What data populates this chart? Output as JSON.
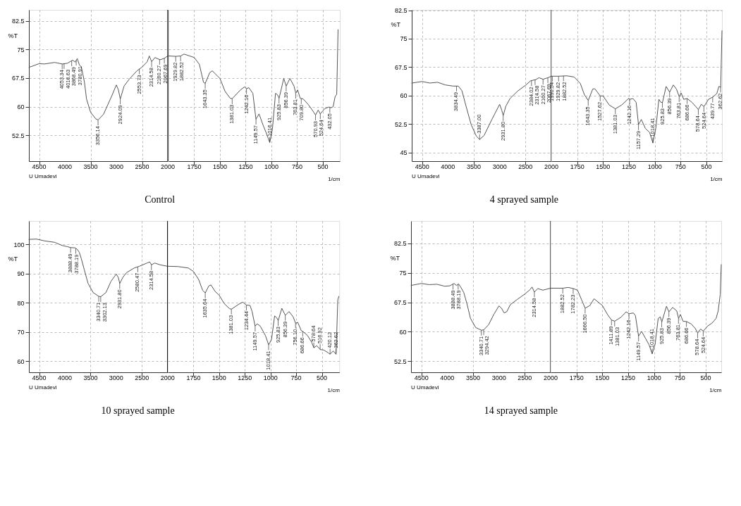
{
  "chart_data": [
    {
      "type": "line",
      "title": "Control",
      "ylabel": "%T",
      "xlim": [
        4700,
        2000
      ],
      "ylim": [
        45.7,
        85.4
      ],
      "xticks": [
        4500,
        4000,
        3500,
        3000,
        2500,
        2000
      ],
      "yticks": [
        52.5,
        60,
        67.5,
        75,
        82.5
      ],
      "grid": true,
      "ref_lines": [
        {
          "axis": "x",
          "value": 2000,
          "color": "#000000"
        }
      ],
      "series": [
        {
          "color": "#555555",
          "x": [
            4700,
            4500,
            4400,
            4200,
            4050,
            3950,
            3850,
            3800,
            3760,
            3720,
            3680,
            3620,
            3580,
            3500,
            3400,
            3356,
            3250,
            3100,
            3000,
            2960,
            2924,
            2850,
            2750,
            2600,
            2500,
            2400,
            2360,
            2314,
            2250,
            2150,
            2067,
            2000
          ],
          "values": [
            70.3,
            71.3,
            71.2,
            71.6,
            71.2,
            71.4,
            72.2,
            71.7,
            72.6,
            71.0,
            70.4,
            66.4,
            62.0,
            58.5,
            56.8,
            56.5,
            58.0,
            62.5,
            65.7,
            64.4,
            62.0,
            65.4,
            67.2,
            69.4,
            70.4,
            71.8,
            73.3,
            71.8,
            72.9,
            72.3,
            72.7,
            73.3
          ]
        }
      ],
      "annotations": [
        "U Umadevi",
        {
          "text": "4053.34",
          "x": 4053.34,
          "y": 71.2
        },
        {
          "text": "4016.63",
          "x": 4016.63,
          "y": 71.3
        },
        {
          "text": "3868.49",
          "x": 3868.49,
          "y": 72.0
        },
        {
          "text": "3780.91",
          "x": 3780.91,
          "y": 72.2
        },
        {
          "text": "3356.14",
          "x": 3356.14,
          "y": 56.5
        },
        {
          "text": "2924.09",
          "x": 2924.09,
          "y": 62.0
        },
        {
          "text": "2553.73",
          "x": 2553.73,
          "y": 69.9
        },
        {
          "text": "2314.58",
          "x": 2314.58,
          "y": 71.8
        },
        {
          "text": "2160.27",
          "x": 2160.27,
          "y": 72.4
        },
        {
          "text": "2067.69",
          "x": 2067.69,
          "y": 72.7
        }
      ]
    },
    {
      "type": "line",
      "xlabel": "1/cm",
      "xlim": [
        2000,
        335
      ],
      "ylim": [
        45.7,
        85.4
      ],
      "xticks": [
        1750,
        1500,
        1250,
        1000,
        750,
        500
      ],
      "yticks": [
        52.5,
        60,
        67.5,
        75,
        82.5
      ],
      "grid": true,
      "tick_labels": "x",
      "series": [
        {
          "color": "#555555",
          "x": [
            2000,
            1930,
            1880,
            1850,
            1750,
            1700,
            1660,
            1643,
            1600,
            1575,
            1500,
            1450,
            1400,
            1381,
            1300,
            1260,
            1242,
            1220,
            1180,
            1150,
            1120,
            1080,
            1050,
            1016,
            990,
            960,
            940,
            925,
            880,
            856,
            820,
            780,
            763,
            745,
            720,
            690,
            640,
            600,
            571,
            545,
            525,
            480,
            440,
            420,
            400,
            380,
            365,
            352
          ],
          "values": [
            73.3,
            73.2,
            73.3,
            73.8,
            72.9,
            71.1,
            66.4,
            66.1,
            68.9,
            69.4,
            67.4,
            64.0,
            62.2,
            62.1,
            64.4,
            65.2,
            64.7,
            65.0,
            63.5,
            56.7,
            58.1,
            55.1,
            53.1,
            50.6,
            54.1,
            63.5,
            63.1,
            62.2,
            67.4,
            65.4,
            67.4,
            65.4,
            63.5,
            64.4,
            62.2,
            62.0,
            60.5,
            59.0,
            57.8,
            59.1,
            58.1,
            59.5,
            59.9,
            59.7,
            60.0,
            62.7,
            63.2,
            80.2
          ]
        }
      ],
      "annotations": [
        {
          "text": "1929.82",
          "x": 1929.82,
          "y": 73.2
        },
        {
          "text": "1882.52",
          "x": 1882.52,
          "y": 73.3
        },
        {
          "text": "1643.35",
          "x": 1643.35,
          "y": 66.1
        },
        {
          "text": "1381.03",
          "x": 1381.03,
          "y": 62.1
        },
        {
          "text": "1242.16",
          "x": 1242.16,
          "y": 64.7
        },
        {
          "text": "1149.57",
          "x": 1149.57,
          "y": 56.7
        },
        {
          "text": "1016.41",
          "x": 1016.41,
          "y": 50.6
        },
        {
          "text": "925.83",
          "x": 925.83,
          "y": 62.2
        },
        {
          "text": "856.39",
          "x": 856.39,
          "y": 65.4
        },
        {
          "text": "763.81",
          "x": 763.81,
          "y": 63.5
        },
        {
          "text": "709.80",
          "x": 709.8,
          "y": 62.1
        },
        {
          "text": "570.93",
          "x": 570.93,
          "y": 57.8
        },
        {
          "text": "524.64",
          "x": 524.64,
          "y": 58.1
        },
        {
          "text": "432.05",
          "x": 432.05,
          "y": 59.8
        }
      ]
    },
    {
      "type": "line",
      "title": "4 sprayed sample",
      "ylabel": "%T",
      "xlim": [
        4700,
        2000
      ],
      "ylim": [
        42.7,
        82.6
      ],
      "xticks": [
        4500,
        4000,
        3500,
        3000,
        2500,
        2000
      ],
      "yticks": [
        45,
        52.5,
        60,
        67.5,
        75,
        82.5
      ],
      "grid": true,
      "ref_lines": [
        {
          "axis": "x",
          "value": 2000,
          "color": "#000000"
        }
      ],
      "series": [
        {
          "color": "#555555",
          "x": [
            4700,
            4500,
            4350,
            4200,
            4050,
            3900,
            3800,
            3730,
            3650,
            3550,
            3450,
            3387,
            3300,
            3150,
            3000,
            2960,
            2931,
            2880,
            2800,
            2650,
            2500,
            2400,
            2300,
            2240,
            2160,
            2067,
            2000
          ],
          "values": [
            63.3,
            63.7,
            63.3,
            63.5,
            62.8,
            62.5,
            62.5,
            61.3,
            57.2,
            52.3,
            49.3,
            48.4,
            49.5,
            53.7,
            57.7,
            56.2,
            54.7,
            57.2,
            59.2,
            61.2,
            62.7,
            63.9,
            64.2,
            64.7,
            64.3,
            64.7,
            65.1
          ]
        }
      ],
      "annotations": [
        "U Umadevi",
        {
          "text": "3834.49",
          "x": 3834.49,
          "y": 62.5
        },
        {
          "text": "3387.00",
          "x": 3387.0,
          "y": 48.4
        },
        {
          "text": "2931.80",
          "x": 2931.8,
          "y": 54.7
        },
        {
          "text": "2384.02",
          "x": 2384.02,
          "y": 63.9
        },
        {
          "text": "2314.58",
          "x": 2314.58,
          "y": 64.2
        },
        {
          "text": "2160.27",
          "x": 2160.27,
          "y": 64.3
        },
        {
          "text": "2067.69",
          "x": 2067.69,
          "y": 64.7
        }
      ]
    },
    {
      "type": "line",
      "xlabel": "1/cm",
      "xlim": [
        2000,
        350
      ],
      "ylim": [
        42.7,
        82.6
      ],
      "xticks": [
        1750,
        1500,
        1250,
        1000,
        750,
        500
      ],
      "yticks": [
        45,
        52.5,
        60,
        67.5,
        75,
        82.5
      ],
      "grid": true,
      "tick_labels": "x",
      "series": [
        {
          "color": "#555555",
          "x": [
            2000,
            1929,
            1850,
            1780,
            1720,
            1680,
            1643,
            1600,
            1580,
            1527,
            1500,
            1440,
            1381,
            1320,
            1250,
            1242,
            1210,
            1180,
            1157,
            1130,
            1090,
            1050,
            1018,
            990,
            960,
            940,
            925,
            890,
            856,
            820,
            790,
            763,
            745,
            720,
            686,
            640,
            600,
            578,
            550,
            524,
            480,
            440,
            400,
            380,
            362,
            350
          ],
          "values": [
            65.1,
            65.1,
            65.2,
            64.9,
            63.2,
            60.2,
            58.7,
            61.7,
            61.8,
            59.9,
            59.9,
            57.5,
            56.5,
            57.5,
            59.3,
            59.0,
            59.2,
            58.2,
            52.3,
            53.7,
            51.3,
            50.3,
            47.5,
            51.3,
            59.0,
            58.2,
            58.2,
            62.4,
            60.9,
            62.8,
            61.7,
            59.7,
            60.7,
            59.0,
            59.2,
            58.2,
            57.0,
            56.3,
            57.7,
            57.1,
            59.0,
            59.6,
            60.5,
            62.4,
            62.2,
            77.1
          ]
        }
      ],
      "annotations": [
        {
          "text": "1990.54",
          "x": 1990.54,
          "y": 65.1
        },
        {
          "text": "1929.82",
          "x": 1929.82,
          "y": 65.1
        },
        {
          "text": "1882.52",
          "x": 1882.52,
          "y": 65.2
        },
        {
          "text": "1643.35",
          "x": 1643.35,
          "y": 58.7
        },
        {
          "text": "1527.62",
          "x": 1527.62,
          "y": 59.9
        },
        {
          "text": "1381.03",
          "x": 1381.03,
          "y": 56.5
        },
        {
          "text": "1242.16",
          "x": 1242.16,
          "y": 59.0
        },
        {
          "text": "1157.29",
          "x": 1157.29,
          "y": 52.3
        },
        {
          "text": "1018.41",
          "x": 1018.41,
          "y": 47.5
        },
        {
          "text": "925.83",
          "x": 925.83,
          "y": 58.2
        },
        {
          "text": "856.39",
          "x": 856.39,
          "y": 60.9
        },
        {
          "text": "763.81",
          "x": 763.81,
          "y": 59.7
        },
        {
          "text": "686.66",
          "x": 686.66,
          "y": 59.2
        },
        {
          "text": "578.64",
          "x": 578.64,
          "y": 56.3
        },
        {
          "text": "524.64",
          "x": 524.64,
          "y": 57.1
        },
        {
          "text": "439.77",
          "x": 439.77,
          "y": 59.6
        },
        {
          "text": "362.62",
          "x": 362.62,
          "y": 62.2
        }
      ]
    },
    {
      "type": "line",
      "title": "10 sprayed sample",
      "ylabel": "%T",
      "xlim": [
        4700,
        2000
      ],
      "ylim": [
        56.2,
        108
      ],
      "xticks": [
        4500,
        4000,
        3500,
        3000,
        2500,
        2000
      ],
      "yticks": [
        60,
        70,
        80,
        90,
        100
      ],
      "grid": true,
      "ref_lines": [
        {
          "axis": "x",
          "value": 2000,
          "color": "#000000"
        }
      ],
      "series": [
        {
          "color": "#555555",
          "x": [
            4700,
            4550,
            4400,
            4200,
            4050,
            3950,
            3888,
            3800,
            3760,
            3720,
            3680,
            3620,
            3550,
            3450,
            3340,
            3300,
            3200,
            3100,
            3000,
            2960,
            2931,
            2870,
            2800,
            2650,
            2550,
            2400,
            2350,
            2314,
            2250,
            2150,
            2000
          ],
          "values": [
            101.7,
            101.8,
            101.2,
            100.7,
            99.6,
            99.2,
            98.9,
            98.8,
            98.3,
            97.3,
            95.1,
            91.2,
            86.7,
            83.5,
            82.2,
            82.1,
            83.5,
            87.4,
            89.8,
            88.7,
            86.6,
            88.7,
            90.3,
            91.9,
            92.5,
            93.6,
            94.0,
            93.0,
            93.6,
            93.0,
            92.5
          ]
        }
      ],
      "annotations": [
        "U Umadevi",
        {
          "text": "3888.49",
          "x": 3888.49,
          "y": 98.9
        },
        {
          "text": "3788.19",
          "x": 3788.19,
          "y": 98.6
        },
        {
          "text": "3340.71",
          "x": 3340.71,
          "y": 82.2
        },
        {
          "text": "3302.13",
          "x": 3302.13,
          "y": 82.1
        },
        {
          "text": "2931.80",
          "x": 2931.8,
          "y": 86.6
        },
        {
          "text": "2580.47",
          "x": 2580.47,
          "y": 92.3
        },
        {
          "text": "2314.58",
          "x": 2314.58,
          "y": 93.0
        }
      ]
    },
    {
      "type": "line",
      "xlabel": "1/cm",
      "xlim": [
        2000,
        330
      ],
      "ylim": [
        56.2,
        108
      ],
      "xticks": [
        1750,
        1500,
        1250,
        1000,
        750,
        500
      ],
      "yticks": [
        60,
        70,
        80,
        90,
        100
      ],
      "grid": true,
      "tick_labels": "x",
      "series": [
        {
          "color": "#555555",
          "x": [
            2000,
            1900,
            1800,
            1750,
            1700,
            1660,
            1635,
            1600,
            1580,
            1540,
            1500,
            1450,
            1400,
            1381,
            1300,
            1270,
            1234,
            1200,
            1180,
            1150,
            1130,
            1100,
            1050,
            1018,
            990,
            960,
            940,
            925,
            890,
            856,
            820,
            780,
            756,
            735,
            700,
            686,
            640,
            600,
            578,
            550,
            516,
            480,
            440,
            420,
            390,
            362,
            345,
            335
          ],
          "values": [
            92.5,
            92.4,
            91.9,
            90.7,
            88.0,
            84.2,
            83.4,
            85.8,
            86.1,
            83.9,
            82.6,
            79.7,
            78.0,
            77.8,
            79.7,
            80.2,
            79.2,
            79.1,
            77.1,
            72.0,
            72.8,
            72.0,
            68.8,
            65.6,
            67.5,
            75.5,
            74.9,
            73.9,
            78.1,
            75.7,
            77.0,
            75.2,
            73.0,
            73.3,
            70.4,
            70.2,
            68.8,
            66.5,
            64.6,
            65.3,
            64.0,
            63.8,
            62.9,
            62.4,
            63.5,
            62.4,
            81.0,
            82.2
          ]
        }
      ],
      "annotations": [
        {
          "text": "1635.64",
          "x": 1635.64,
          "y": 83.4
        },
        {
          "text": "1381.03",
          "x": 1381.03,
          "y": 77.8
        },
        {
          "text": "1234.44",
          "x": 1234.44,
          "y": 79.2
        },
        {
          "text": "1149.57",
          "x": 1149.57,
          "y": 72.0
        },
        {
          "text": "1018.41",
          "x": 1018.41,
          "y": 65.6
        },
        {
          "text": "925.83",
          "x": 925.83,
          "y": 73.9
        },
        {
          "text": "856.39",
          "x": 856.39,
          "y": 75.7
        },
        {
          "text": "756.10",
          "x": 756.1,
          "y": 73.0
        },
        {
          "text": "686.66",
          "x": 686.66,
          "y": 70.2
        },
        {
          "text": "578.64",
          "x": 578.64,
          "y": 64.6
        },
        {
          "text": "516.92",
          "x": 516.92,
          "y": 64.0
        },
        {
          "text": "420.12",
          "x": 420.12,
          "y": 62.4
        },
        {
          "text": "362.62",
          "x": 362.62,
          "y": 62.4
        }
      ]
    },
    {
      "type": "line",
      "title": "14 sprayed sample",
      "ylabel": "%T",
      "xlim": [
        4700,
        2000
      ],
      "ylim": [
        49.7,
        88.2
      ],
      "xticks": [
        4500,
        4000,
        3500,
        3000,
        2500,
        2000
      ],
      "yticks": [
        52.5,
        60,
        67.5,
        75,
        82.5
      ],
      "grid": true,
      "ref_lines": [
        {
          "axis": "x",
          "value": 2000,
          "color": "#000000"
        }
      ],
      "series": [
        {
          "color": "#555555",
          "x": [
            4700,
            4500,
            4350,
            4200,
            4050,
            3950,
            3870,
            3820,
            3780,
            3740,
            3680,
            3620,
            3550,
            3450,
            3340,
            3294,
            3200,
            3100,
            3000,
            2950,
            2900,
            2850,
            2780,
            2650,
            2500,
            2400,
            2360,
            2314,
            2250,
            2150,
            2000
          ],
          "values": [
            71.8,
            72.3,
            72.0,
            72.1,
            71.6,
            71.7,
            72.3,
            71.8,
            72.2,
            71.4,
            70.0,
            67.2,
            63.4,
            61.1,
            60.4,
            60.5,
            61.8,
            64.4,
            66.6,
            66.0,
            64.8,
            65.1,
            66.9,
            68.2,
            69.6,
            70.7,
            71.4,
            70.1,
            71.0,
            70.6,
            71.1
          ]
        }
      ],
      "annotations": [
        "U Umadevi",
        {
          "text": "3888.49",
          "x": 3888.49,
          "y": 72.1
        },
        {
          "text": "3788.19",
          "x": 3788.19,
          "y": 72.1
        },
        {
          "text": "3340.71",
          "x": 3340.71,
          "y": 60.4
        },
        {
          "text": "3294.42",
          "x": 3294.42,
          "y": 60.5
        },
        {
          "text": "2314.58",
          "x": 2314.58,
          "y": 70.1
        }
      ]
    },
    {
      "type": "line",
      "xlabel": "1/cm",
      "xlim": [
        2000,
        350
      ],
      "ylim": [
        49.7,
        88.2
      ],
      "xticks": [
        1750,
        1500,
        1250,
        1000,
        750,
        500
      ],
      "yticks": [
        52.5,
        60,
        67.5,
        75,
        82.5
      ],
      "grid": true,
      "tick_labels": "x",
      "series": [
        {
          "color": "#555555",
          "x": [
            2000,
            1882,
            1830,
            1782,
            1740,
            1700,
            1666,
            1620,
            1580,
            1500,
            1450,
            1411,
            1381,
            1320,
            1270,
            1242,
            1200,
            1180,
            1150,
            1120,
            1080,
            1050,
            1018,
            990,
            960,
            940,
            925,
            880,
            856,
            820,
            780,
            763,
            745,
            720,
            686,
            640,
            600,
            578,
            550,
            524,
            480,
            440,
            400,
            380,
            360,
            350
          ],
          "values": [
            71.1,
            71.1,
            71.3,
            71.0,
            70.6,
            68.1,
            66.0,
            66.7,
            68.4,
            66.7,
            64.4,
            63.0,
            62.7,
            63.7,
            65.1,
            64.6,
            64.8,
            64.1,
            58.9,
            60.1,
            58.2,
            56.8,
            54.4,
            56.8,
            63.4,
            63.8,
            62.5,
            66.5,
            65.1,
            66.2,
            65.3,
            63.4,
            64.4,
            62.7,
            62.6,
            62.0,
            60.8,
            59.7,
            60.7,
            60.2,
            61.5,
            62.2,
            63.4,
            65.3,
            69.5,
            77.1
          ]
        }
      ],
      "annotations": [
        {
          "text": "1882.52",
          "x": 1882.52,
          "y": 71.1
        },
        {
          "text": "1782.23",
          "x": 1782.23,
          "y": 71.0
        },
        {
          "text": "1666.50",
          "x": 1666.5,
          "y": 66.0
        },
        {
          "text": "1411.89",
          "x": 1411.89,
          "y": 63.0
        },
        {
          "text": "1381.03",
          "x": 1381.03,
          "y": 62.7
        },
        {
          "text": "1242.16",
          "x": 1242.16,
          "y": 64.6
        },
        {
          "text": "1149.57",
          "x": 1149.57,
          "y": 58.9
        },
        {
          "text": "1018.41",
          "x": 1018.41,
          "y": 54.4
        },
        {
          "text": "925.83",
          "x": 925.83,
          "y": 62.5
        },
        {
          "text": "856.39",
          "x": 856.39,
          "y": 65.1
        },
        {
          "text": "763.81",
          "x": 763.81,
          "y": 63.4
        },
        {
          "text": "686.66",
          "x": 686.66,
          "y": 62.6
        },
        {
          "text": "578.64",
          "x": 578.64,
          "y": 59.7
        },
        {
          "text": "524.64",
          "x": 524.64,
          "y": 60.2
        }
      ]
    }
  ]
}
